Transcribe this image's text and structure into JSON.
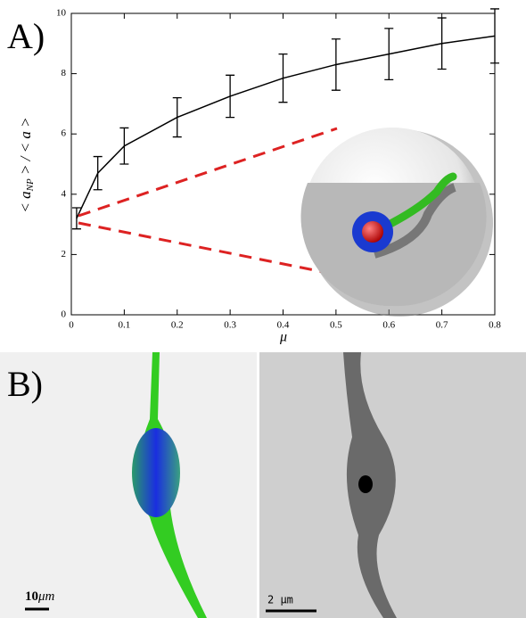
{
  "chart_data": {
    "type": "errorline",
    "panel_label": "A)",
    "xlabel": "μ",
    "ylabel": {
      "main": "< a",
      "sub": "NP",
      "rest": " > / < a >"
    },
    "x": [
      0.01,
      0.05,
      0.1,
      0.2,
      0.3,
      0.4,
      0.5,
      0.6,
      0.7,
      0.8
    ],
    "values": [
      3.2,
      4.7,
      5.6,
      6.55,
      7.25,
      7.85,
      8.3,
      8.65,
      9.0,
      9.25
    ],
    "errors": [
      0.35,
      0.55,
      0.6,
      0.65,
      0.7,
      0.8,
      0.85,
      0.85,
      0.85,
      0.9
    ],
    "color": "#000000",
    "xlim": [
      0,
      0.8
    ],
    "xticks": [
      0,
      0.1,
      0.2,
      0.3,
      0.4,
      0.5,
      0.6,
      0.7,
      0.8
    ],
    "ylim": [
      0,
      10
    ],
    "yticks": [
      0,
      2,
      4,
      6,
      8,
      10
    ]
  },
  "panel_b": {
    "label": "B)",
    "left_scale": {
      "number": "10",
      "unit": "μm"
    },
    "right_scale": "2 μm"
  }
}
